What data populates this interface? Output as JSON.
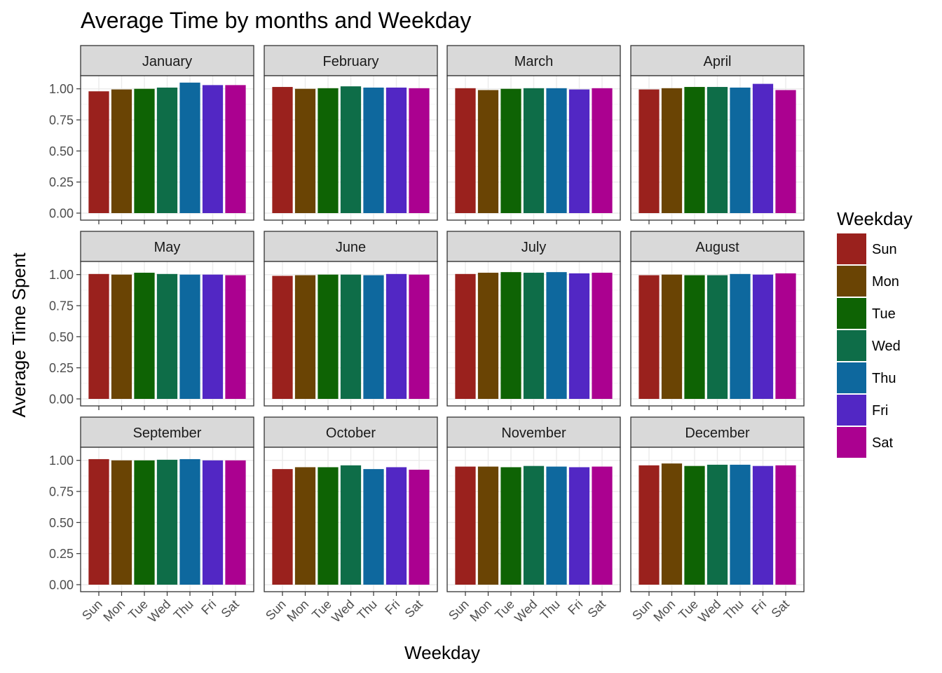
{
  "chart_data": {
    "type": "bar",
    "title": "Average Time by months and Weekday",
    "xlabel": "Weekday",
    "ylabel": "Average Time Spent",
    "ylim": [
      0,
      1.15
    ],
    "y_ticks": [
      "0.00",
      "0.25",
      "0.50",
      "0.75",
      "1.00"
    ],
    "y_tick_values": [
      0,
      0.25,
      0.5,
      0.75,
      1.0
    ],
    "grid": true,
    "legend": {
      "title": "Weekday",
      "position": "right",
      "labels": [
        "Sun",
        "Mon",
        "Tue",
        "Wed",
        "Thu",
        "Fri",
        "Sat"
      ]
    },
    "categories": [
      "Sun",
      "Mon",
      "Tue",
      "Wed",
      "Thu",
      "Fri",
      "Sat"
    ],
    "colors": {
      "Sun": "#9A211D",
      "Mon": "#6A4404",
      "Tue": "#0E6304",
      "Wed": "#0E6D48",
      "Thu": "#0E689E",
      "Fri": "#5227C4",
      "Sat": "#AB0190"
    },
    "facets": [
      {
        "month": "January",
        "values": [
          0.98,
          0.995,
          1.0,
          1.01,
          1.05,
          1.03,
          1.03
        ]
      },
      {
        "month": "February",
        "values": [
          1.015,
          1.0,
          1.005,
          1.02,
          1.01,
          1.01,
          1.005
        ]
      },
      {
        "month": "March",
        "values": [
          1.005,
          0.99,
          1.0,
          1.005,
          1.005,
          0.995,
          1.005
        ]
      },
      {
        "month": "April",
        "values": [
          0.995,
          1.005,
          1.015,
          1.015,
          1.01,
          1.04,
          0.99
        ]
      },
      {
        "month": "May",
        "values": [
          1.005,
          1.0,
          1.015,
          1.005,
          1.0,
          1.0,
          0.995
        ]
      },
      {
        "month": "June",
        "values": [
          0.99,
          0.995,
          1.0,
          1.0,
          0.995,
          1.005,
          1.0
        ]
      },
      {
        "month": "July",
        "values": [
          1.005,
          1.015,
          1.02,
          1.015,
          1.02,
          1.01,
          1.015
        ]
      },
      {
        "month": "August",
        "values": [
          0.995,
          1.0,
          0.995,
          0.995,
          1.005,
          1.0,
          1.01
        ]
      },
      {
        "month": "September",
        "values": [
          1.01,
          1.0,
          1.0,
          1.005,
          1.01,
          1.0,
          1.0
        ]
      },
      {
        "month": "October",
        "values": [
          0.93,
          0.945,
          0.945,
          0.96,
          0.93,
          0.945,
          0.925
        ]
      },
      {
        "month": "November",
        "values": [
          0.95,
          0.95,
          0.945,
          0.955,
          0.95,
          0.945,
          0.95
        ]
      },
      {
        "month": "December",
        "values": [
          0.96,
          0.975,
          0.955,
          0.965,
          0.965,
          0.955,
          0.96
        ]
      }
    ]
  }
}
